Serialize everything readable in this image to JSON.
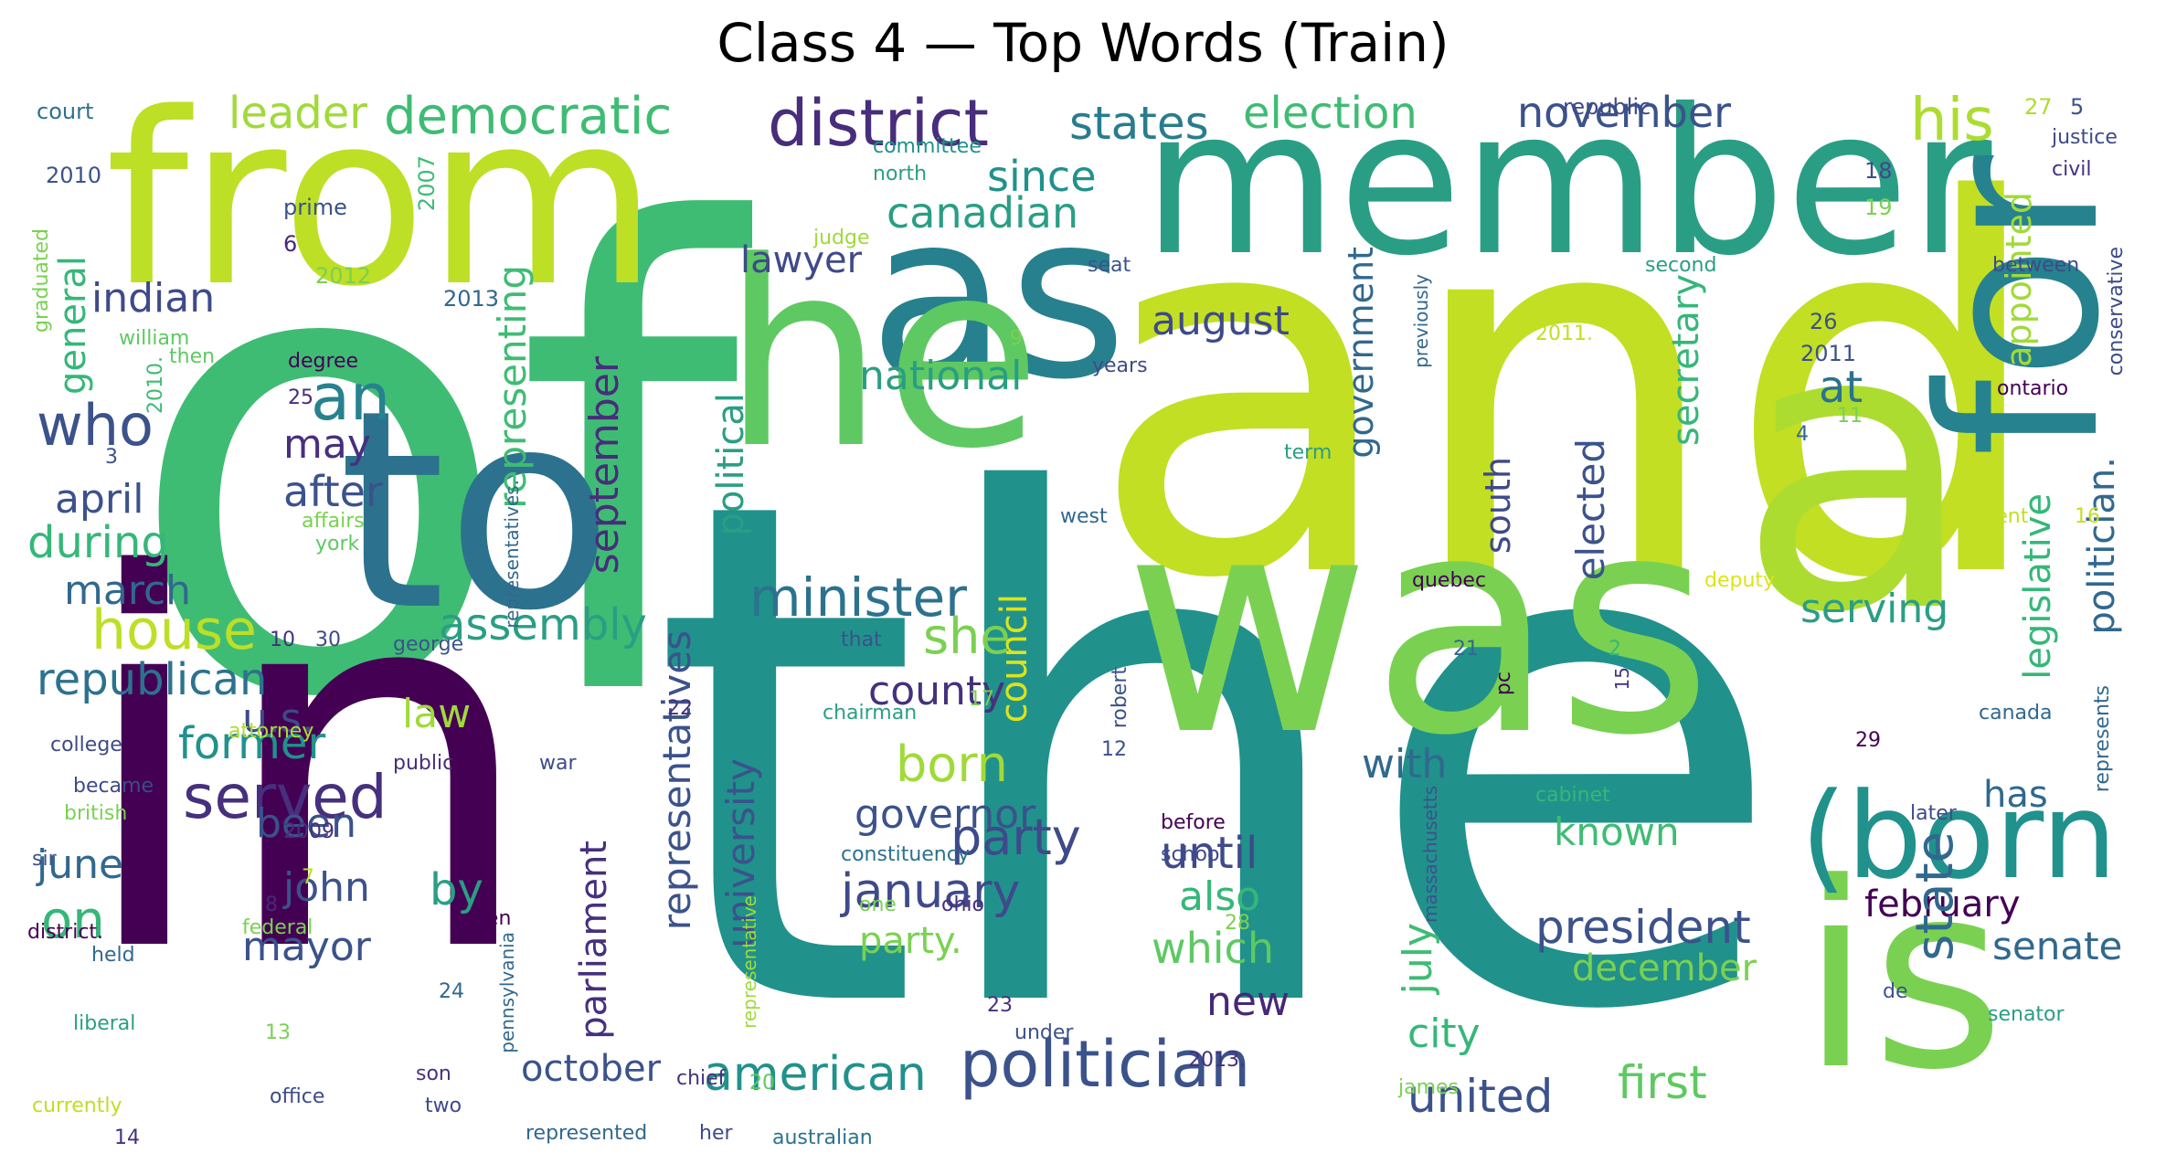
{
  "title": "Class 4 — Top Words (Train)",
  "palette": {
    "purple": "#440154",
    "indigo": "#3b528b",
    "teal": "#21918c",
    "green": "#5ec962",
    "lime": "#c2df23",
    "sea": "#2a9e84",
    "blue": "#31688e",
    "emerald": "#3fbc73"
  },
  "words": [
    {
      "text": "of",
      "color": "#3fbc73"
    },
    {
      "text": "the",
      "color": "#21918c"
    },
    {
      "text": "and",
      "color": "#c2df23"
    },
    {
      "text": "in",
      "color": "#440154"
    },
    {
      "text": "from",
      "color": "#bddf26"
    },
    {
      "text": "member",
      "color": "#2a9e84"
    },
    {
      "text": "as",
      "color": "#27808e"
    },
    {
      "text": "he",
      "color": "#5ec962"
    },
    {
      "text": "was",
      "color": "#7ad151"
    },
    {
      "text": "a",
      "color": "#addc30"
    },
    {
      "text": "for",
      "color": "#26828e"
    },
    {
      "text": "to",
      "color": "#2c728e"
    },
    {
      "text": "is",
      "color": "#7ad151"
    },
    {
      "text": "(born",
      "color": "#21918c"
    },
    {
      "text": "politician",
      "color": "#3b528b"
    },
    {
      "text": "district",
      "color": "#472d7b"
    },
    {
      "text": "democratic",
      "color": "#3fbc73"
    },
    {
      "text": "leader",
      "color": "#a0da39"
    },
    {
      "text": "states",
      "color": "#287c8e"
    },
    {
      "text": "election",
      "color": "#3fbc73"
    },
    {
      "text": "november",
      "color": "#3b528b"
    },
    {
      "text": "his",
      "color": "#addc30"
    },
    {
      "text": "since",
      "color": "#21918c"
    },
    {
      "text": "canadian",
      "color": "#2a9e84"
    },
    {
      "text": "lawyer",
      "color": "#3e4a89"
    },
    {
      "text": "indian",
      "color": "#3e4a89"
    },
    {
      "text": "general",
      "color": "#35b779"
    },
    {
      "text": "who",
      "color": "#3b528b"
    },
    {
      "text": "an",
      "color": "#26828e"
    },
    {
      "text": "may",
      "color": "#46307e"
    },
    {
      "text": "after",
      "color": "#3b528b"
    },
    {
      "text": "april",
      "color": "#3b528b"
    },
    {
      "text": "during",
      "color": "#35b779"
    },
    {
      "text": "march",
      "color": "#31688e"
    },
    {
      "text": "house",
      "color": "#bddf26"
    },
    {
      "text": "republican",
      "color": "#2c728e"
    },
    {
      "text": "assembly",
      "color": "#2a9e84"
    },
    {
      "text": "minister",
      "color": "#2c728e"
    },
    {
      "text": "she",
      "color": "#7ad151"
    },
    {
      "text": "county",
      "color": "#46307e"
    },
    {
      "text": "u.s.",
      "color": "#3e4a89"
    },
    {
      "text": "former",
      "color": "#21918c"
    },
    {
      "text": "law",
      "color": "#a0da39"
    },
    {
      "text": "served",
      "color": "#46307e"
    },
    {
      "text": "born",
      "color": "#a0da39"
    },
    {
      "text": "governor",
      "color": "#3b528b"
    },
    {
      "text": "june",
      "color": "#31688e"
    },
    {
      "text": "been",
      "color": "#3b528b"
    },
    {
      "text": "party",
      "color": "#3e4a89"
    },
    {
      "text": "until",
      "color": "#3e4a89"
    },
    {
      "text": "on",
      "color": "#35b779"
    },
    {
      "text": "john",
      "color": "#3b528b"
    },
    {
      "text": "by",
      "color": "#2a9e84"
    },
    {
      "text": "january",
      "color": "#3e4a89"
    },
    {
      "text": "party.",
      "color": "#7ad151"
    },
    {
      "text": "also",
      "color": "#35b779"
    },
    {
      "text": "which",
      "color": "#5ec962"
    },
    {
      "text": "mayor",
      "color": "#3b528b"
    },
    {
      "text": "new",
      "color": "#482878"
    },
    {
      "text": "october",
      "color": "#3b528b"
    },
    {
      "text": "american",
      "color": "#21918c"
    },
    {
      "text": "united",
      "color": "#3b528b"
    },
    {
      "text": "first",
      "color": "#5ec962"
    },
    {
      "text": "city",
      "color": "#35b779"
    },
    {
      "text": "president",
      "color": "#3b528b"
    },
    {
      "text": "february",
      "color": "#440154"
    },
    {
      "text": "senate",
      "color": "#31688e"
    },
    {
      "text": "december",
      "color": "#7ad151"
    },
    {
      "text": "known",
      "color": "#3fbc73"
    },
    {
      "text": "has",
      "color": "#31688e"
    },
    {
      "text": "with",
      "color": "#31688e"
    },
    {
      "text": "serving",
      "color": "#2a9e84"
    },
    {
      "text": "at",
      "color": "#2c728e"
    },
    {
      "text": "august",
      "color": "#3e4a89"
    },
    {
      "text": "national",
      "color": "#2a9e84"
    },
    {
      "text": "september",
      "color": "#472d7b"
    },
    {
      "text": "political",
      "color": "#2a9e84"
    },
    {
      "text": "representing",
      "color": "#3fbc73"
    },
    {
      "text": "representatives",
      "color": "#3b528b"
    },
    {
      "text": "university",
      "color": "#3b528b"
    },
    {
      "text": "parliament",
      "color": "#46307e"
    },
    {
      "text": "council",
      "color": "#dde318"
    },
    {
      "text": "elected",
      "color": "#3b528b"
    },
    {
      "text": "south",
      "color": "#3e4a89"
    },
    {
      "text": "government",
      "color": "#31688e"
    },
    {
      "text": "july",
      "color": "#3fbc73"
    },
    {
      "text": "secretary",
      "color": "#35b779"
    },
    {
      "text": "appointed",
      "color": "#a0da39"
    },
    {
      "text": "legislative",
      "color": "#35b779"
    },
    {
      "text": "politician.",
      "color": "#31688e"
    },
    {
      "text": "state",
      "color": "#31688e"
    },
    {
      "text": "court",
      "color": "#2c728e"
    },
    {
      "text": "2010",
      "color": "#3b528b"
    },
    {
      "text": "prime",
      "color": "#3b528b"
    },
    {
      "text": "6",
      "color": "#482878"
    },
    {
      "text": "2007",
      "color": "#3fbc73"
    },
    {
      "text": "2012",
      "color": "#7ad151"
    },
    {
      "text": "2013",
      "color": "#31688e"
    },
    {
      "text": "graduated",
      "color": "#7ad151"
    },
    {
      "text": "william",
      "color": "#5ec962"
    },
    {
      "text": "then",
      "color": "#5ec962"
    },
    {
      "text": "degree",
      "color": "#440154"
    },
    {
      "text": "25",
      "color": "#472d7b"
    },
    {
      "text": "2010.",
      "color": "#3fbc73"
    },
    {
      "text": "3",
      "color": "#3b528b"
    },
    {
      "text": "affairs",
      "color": "#7ad151"
    },
    {
      "text": "york",
      "color": "#5ec962"
    },
    {
      "text": "representatives.",
      "color": "#31688e"
    },
    {
      "text": "10",
      "color": "#46307e"
    },
    {
      "text": "30",
      "color": "#3e4a89"
    },
    {
      "text": "george",
      "color": "#3b528b"
    },
    {
      "text": "attorney",
      "color": "#addc30"
    },
    {
      "text": "college",
      "color": "#3e4a89"
    },
    {
      "text": "became",
      "color": "#3e4a89"
    },
    {
      "text": "british",
      "color": "#7ad151"
    },
    {
      "text": "public",
      "color": "#472d7b"
    },
    {
      "text": "war",
      "color": "#3e4a89"
    },
    {
      "text": "2009",
      "color": "#46307e"
    },
    {
      "text": "sir",
      "color": "#3b528b"
    },
    {
      "text": "7",
      "color": "#c2df23"
    },
    {
      "text": "8",
      "color": "#482878"
    },
    {
      "text": "district.",
      "color": "#440154"
    },
    {
      "text": "held",
      "color": "#31688e"
    },
    {
      "text": "federal",
      "color": "#7ad151"
    },
    {
      "text": "when",
      "color": "#440154"
    },
    {
      "text": "liberal",
      "color": "#2a9e84"
    },
    {
      "text": "24",
      "color": "#31688e"
    },
    {
      "text": "13",
      "color": "#7ad151"
    },
    {
      "text": "pennsylvania",
      "color": "#31688e"
    },
    {
      "text": "office",
      "color": "#3e4a89"
    },
    {
      "text": "son",
      "color": "#46307e"
    },
    {
      "text": "currently",
      "color": "#bddf26"
    },
    {
      "text": "two",
      "color": "#3e4a89"
    },
    {
      "text": "14",
      "color": "#46307e"
    },
    {
      "text": "chief",
      "color": "#46307e"
    },
    {
      "text": "20",
      "color": "#5ec962"
    },
    {
      "text": "represented",
      "color": "#31688e"
    },
    {
      "text": "her",
      "color": "#3e4a89"
    },
    {
      "text": "australian",
      "color": "#2c728e"
    },
    {
      "text": "representative",
      "color": "#a0da39"
    },
    {
      "text": "republic",
      "color": "#3e4a89"
    },
    {
      "text": "committee",
      "color": "#21918c"
    },
    {
      "text": "north",
      "color": "#2a9e84"
    },
    {
      "text": "27",
      "color": "#addc30"
    },
    {
      "text": "5",
      "color": "#3b528b"
    },
    {
      "text": "justice",
      "color": "#3e4a89"
    },
    {
      "text": "civil",
      "color": "#46307e"
    },
    {
      "text": "18",
      "color": "#3e4a89"
    },
    {
      "text": "19",
      "color": "#7ad151"
    },
    {
      "text": "judge",
      "color": "#a0da39"
    },
    {
      "text": "seat",
      "color": "#3b528b"
    },
    {
      "text": "second",
      "color": "#2a9e84"
    },
    {
      "text": "between",
      "color": "#3e4a89"
    },
    {
      "text": "conservative",
      "color": "#3e4a89"
    },
    {
      "text": "previously",
      "color": "#31688e"
    },
    {
      "text": "2011.",
      "color": "#c2df23"
    },
    {
      "text": "26",
      "color": "#3b528b"
    },
    {
      "text": "2011",
      "color": "#3b528b"
    },
    {
      "text": "years",
      "color": "#3e4a89"
    },
    {
      "text": "9",
      "color": "#7ad151"
    },
    {
      "text": "ontario",
      "color": "#440154"
    },
    {
      "text": "11",
      "color": "#7ad151"
    },
    {
      "text": "4",
      "color": "#31688e"
    },
    {
      "text": "term",
      "color": "#2a9e84"
    },
    {
      "text": "west",
      "color": "#31688e"
    },
    {
      "text": "current",
      "color": "#c2df23"
    },
    {
      "text": "16",
      "color": "#c2df23"
    },
    {
      "text": "quebec",
      "color": "#440154"
    },
    {
      "text": "deputy",
      "color": "#dde318"
    },
    {
      "text": "that",
      "color": "#3b528b"
    },
    {
      "text": "21",
      "color": "#31688e"
    },
    {
      "text": "pc",
      "color": "#440154"
    },
    {
      "text": "2",
      "color": "#35b779"
    },
    {
      "text": "15",
      "color": "#46307e"
    },
    {
      "text": "robert",
      "color": "#3b528b"
    },
    {
      "text": "17",
      "color": "#7ad151"
    },
    {
      "text": "22",
      "color": "#46307e"
    },
    {
      "text": "chairman",
      "color": "#2a9e84"
    },
    {
      "text": "12",
      "color": "#3b528b"
    },
    {
      "text": "29",
      "color": "#440154"
    },
    {
      "text": "canada",
      "color": "#31688e"
    },
    {
      "text": "represents",
      "color": "#31688e"
    },
    {
      "text": "cabinet",
      "color": "#35b779"
    },
    {
      "text": "later",
      "color": "#3e4a89"
    },
    {
      "text": "massachusetts",
      "color": "#3b528b"
    },
    {
      "text": "before",
      "color": "#440154"
    },
    {
      "text": "school",
      "color": "#3e4a89"
    },
    {
      "text": "constituency",
      "color": "#2c728e"
    },
    {
      "text": "one",
      "color": "#7ad151"
    },
    {
      "text": "ohio",
      "color": "#46307e"
    },
    {
      "text": "28",
      "color": "#7ad151"
    },
    {
      "text": "de",
      "color": "#3b528b"
    },
    {
      "text": "senator",
      "color": "#2a9e84"
    },
    {
      "text": "23",
      "color": "#46307e"
    },
    {
      "text": "under",
      "color": "#3b528b"
    },
    {
      "text": "2013.",
      "color": "#46307e"
    },
    {
      "text": "james",
      "color": "#7ad151"
    }
  ]
}
